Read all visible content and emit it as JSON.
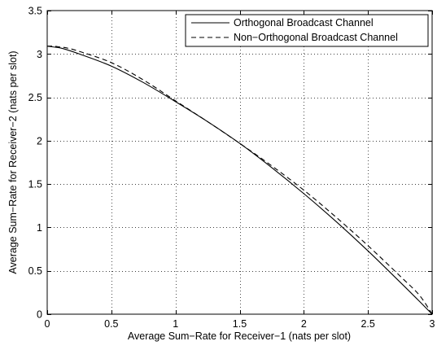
{
  "chart_data": {
    "type": "line",
    "title": "",
    "xlabel": "Average Sum−Rate for Receiver−1 (nats per slot)",
    "ylabel": "Average Sum−Rate for Receiver−2 (nats per slot)",
    "xlim": [
      0,
      3
    ],
    "ylim": [
      0,
      3.5
    ],
    "xticks": [
      0,
      0.5,
      1,
      1.5,
      2,
      2.5,
      3
    ],
    "yticks": [
      0,
      0.5,
      1,
      1.5,
      2,
      2.5,
      3,
      3.5
    ],
    "xtick_labels": [
      "0",
      "0.5",
      "1",
      "1.5",
      "2",
      "2.5",
      "3"
    ],
    "ytick_labels": [
      "0",
      "0.5",
      "1",
      "1.5",
      "2",
      "2.5",
      "3",
      "3.5"
    ],
    "grid": true,
    "legend_position": "top-right",
    "series": [
      {
        "name": "Orthogonal Broadcast Channel",
        "line_style": "solid",
        "color": "#000000",
        "x": [
          0,
          0.05,
          0.1,
          0.15,
          0.25,
          0.5,
          0.75,
          1.0,
          1.25,
          1.5,
          1.75,
          2.0,
          2.25,
          2.5,
          2.75,
          2.9,
          3.0
        ],
        "y": [
          3.09,
          3.08,
          3.07,
          3.05,
          3.0,
          2.86,
          2.67,
          2.45,
          2.22,
          1.97,
          1.69,
          1.39,
          1.07,
          0.73,
          0.37,
          0.15,
          0.0
        ]
      },
      {
        "name": "Non−Orthogonal Broadcast Channel",
        "line_style": "dashed",
        "color": "#000000",
        "x": [
          0,
          0.05,
          0.1,
          0.15,
          0.25,
          0.5,
          0.75,
          1.0,
          1.25,
          1.5,
          1.75,
          2.0,
          2.25,
          2.5,
          2.75,
          2.9,
          3.0
        ],
        "y": [
          3.09,
          3.09,
          3.08,
          3.07,
          3.03,
          2.9,
          2.7,
          2.46,
          2.22,
          1.97,
          1.71,
          1.43,
          1.12,
          0.79,
          0.44,
          0.22,
          0.0
        ]
      }
    ]
  }
}
